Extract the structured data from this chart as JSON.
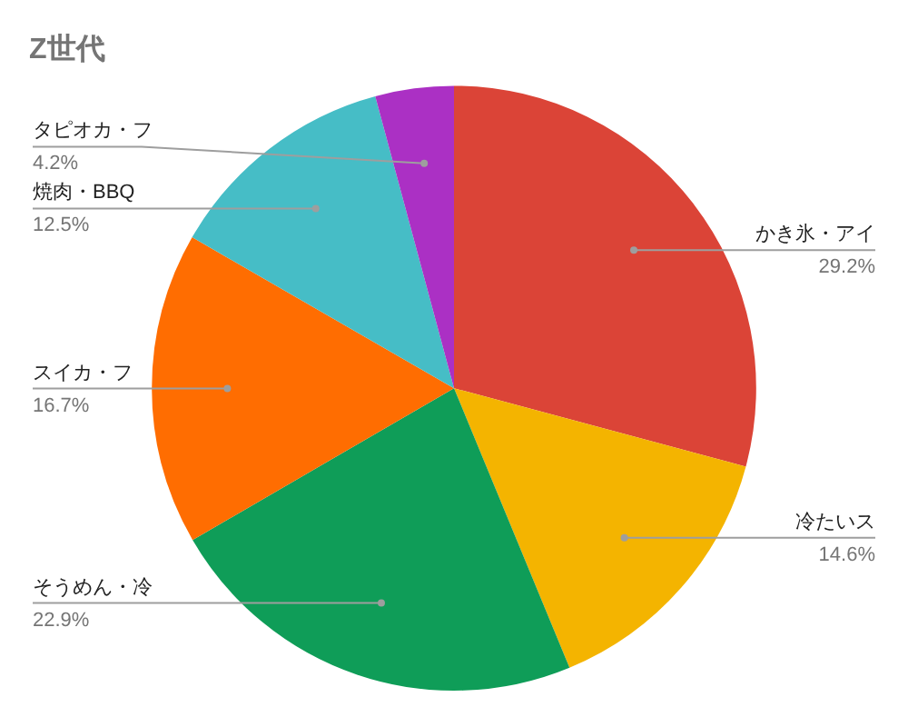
{
  "chart_data": {
    "type": "pie",
    "title": "Z世代",
    "categories": [
      "かき氷・アイ",
      "冷たいス",
      "そうめん・冷",
      "スイカ・フ",
      "焼肉・BBQ",
      "タピオカ・フ"
    ],
    "values": [
      29.2,
      14.6,
      22.9,
      16.7,
      12.5,
      4.2
    ],
    "value_labels": [
      "29.2%",
      "14.6%",
      "22.9%",
      "16.7%",
      "12.5%",
      "4.2%"
    ],
    "colors": [
      "#db4437",
      "#f4b400",
      "#0f9d58",
      "#ff6d01",
      "#46bdc6",
      "#ab30c4"
    ],
    "legend": false
  }
}
